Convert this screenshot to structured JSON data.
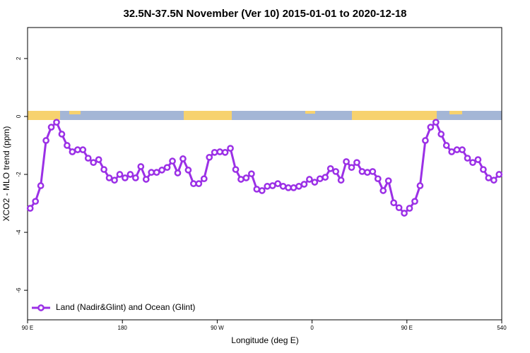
{
  "chart_data": {
    "type": "line",
    "title": "32.5N-37.5N November (Ver 10)   2015-01-01 to 2020-12-18",
    "x_label": "Longitude (deg E)",
    "y_label": "XCO2 - MLO trend (ppm)",
    "x": [
      92.5,
      97.5,
      102.5,
      107.5,
      112.5,
      117.5,
      122.5,
      127.5,
      132.5,
      137.5,
      142.5,
      147.5,
      152.5,
      157.5,
      162.5,
      167.5,
      172.5,
      177.5,
      182.5,
      187.5,
      192.5,
      197.5,
      202.5,
      207.5,
      212.5,
      217.5,
      222.5,
      227.5,
      232.5,
      237.5,
      242.5,
      247.5,
      252.5,
      257.5,
      262.5,
      267.5,
      272.5,
      277.5,
      282.5,
      287.5,
      292.5,
      297.5,
      302.5,
      307.5,
      312.5,
      317.5,
      322.5,
      327.5,
      332.5,
      337.5,
      342.5,
      347.5,
      352.5,
      357.5,
      362.5,
      367.5,
      372.5,
      377.5,
      382.5,
      387.5,
      392.5,
      397.5,
      402.5,
      407.5,
      412.5,
      417.5,
      422.5,
      427.5,
      432.5,
      437.5,
      442.5,
      447.5,
      452.5,
      457.5,
      462.5,
      467.5,
      472.5,
      477.5,
      482.5,
      487.5,
      492.5,
      497.5,
      502.5,
      507.5,
      512.5,
      517.5,
      522.5,
      527.5,
      532.5,
      537.5
    ],
    "series": [
      {
        "name": "Land (Nadir&Glint) and Ocean (Glint)",
        "color": "#9b30e6",
        "values": [
          -3.17,
          -2.93,
          -2.39,
          -0.83,
          -0.37,
          -0.2,
          -0.61,
          -1.0,
          -1.22,
          -1.15,
          -1.15,
          -1.44,
          -1.59,
          -1.49,
          -1.83,
          -2.12,
          -2.2,
          -2.0,
          -2.12,
          -2.0,
          -2.12,
          -1.73,
          -2.17,
          -1.93,
          -1.93,
          -1.85,
          -1.76,
          -1.54,
          -1.95,
          -1.46,
          -1.85,
          -2.32,
          -2.32,
          -2.15,
          -1.41,
          -1.24,
          -1.22,
          -1.24,
          -1.1,
          -1.83,
          -2.17,
          -2.12,
          -1.98,
          -2.51,
          -2.56,
          -2.41,
          -2.39,
          -2.32,
          -2.41,
          -2.46,
          -2.46,
          -2.41,
          -2.34,
          -2.17,
          -2.27,
          -2.15,
          -2.1,
          -1.8,
          -1.9,
          -2.2,
          -1.56,
          -1.76,
          -1.59,
          -1.9,
          -1.93,
          -1.9,
          -2.15,
          -2.56,
          -2.22,
          -2.98,
          -3.15,
          -3.34,
          -3.17,
          -2.93,
          -2.39,
          -0.83,
          -0.37,
          -0.2,
          -0.61,
          -1.0,
          -1.22,
          -1.15,
          -1.15,
          -1.44,
          -1.59,
          -1.49,
          -1.83,
          -2.12,
          -2.2,
          -2.0
        ]
      }
    ],
    "xlim": [
      90,
      540
    ],
    "xticks": [
      {
        "value": 90,
        "label": "90 E"
      },
      180,
      {
        "value": 270,
        "label": "90 W"
      },
      {
        "value": 360,
        "label": "0"
      },
      {
        "value": 450,
        "label": "90 E"
      },
      540
    ],
    "ylim": [
      -7.02,
      3.07
    ],
    "yticks": [
      2,
      0,
      -2,
      -4,
      -6
    ],
    "legend": "lower-left"
  }
}
